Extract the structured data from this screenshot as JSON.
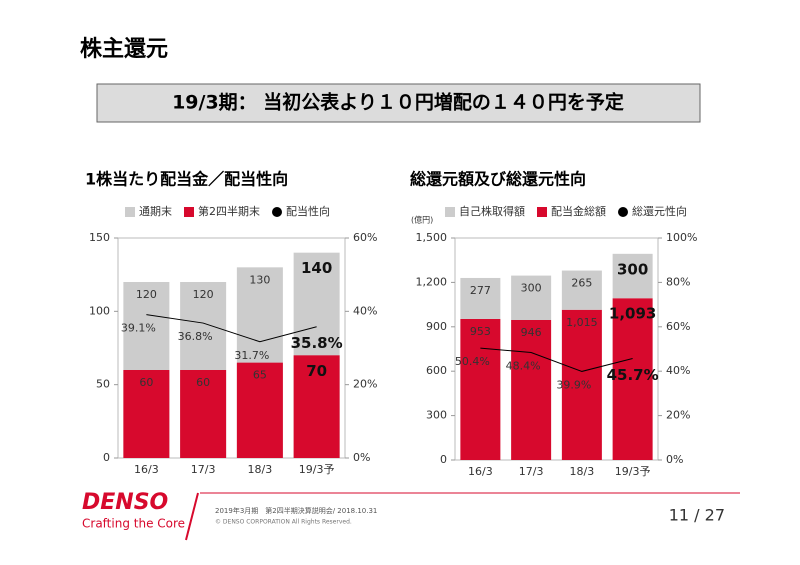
{
  "title": "株主還元",
  "headline": "19/3期： 当初公表より１０円増配の１４０円を予定",
  "chart_data": [
    {
      "type": "bar",
      "barmode": "overlay",
      "title": "1株当たり配当金／配当性向",
      "categories": [
        "16/3",
        "17/3",
        "18/3",
        "19/3予"
      ],
      "series": [
        {
          "name": "通期末",
          "color": "#cccccc",
          "values": [
            120,
            120,
            130,
            140
          ]
        },
        {
          "name": "第2四半期末",
          "color": "#d7092d",
          "values": [
            60,
            60,
            65,
            70
          ]
        },
        {
          "name": "配当性向",
          "type": "line",
          "color": "#000000",
          "axis": "y2",
          "values": [
            39.1,
            36.8,
            31.7,
            35.8
          ],
          "value_labels": [
            "39.1%",
            "36.8%",
            "31.7%",
            "35.8%"
          ]
        }
      ],
      "ylim": [
        0,
        150
      ],
      "yticks": [
        0,
        50,
        100,
        150
      ],
      "y2lim": [
        0,
        60
      ],
      "y2ticks": [
        {
          "value": 0,
          "label": "0%"
        },
        {
          "value": 20,
          "label": "20%"
        },
        {
          "value": 40,
          "label": "40%"
        },
        {
          "value": 60,
          "label": "60%"
        }
      ]
    },
    {
      "type": "bar",
      "barmode": "stack",
      "title": "総還元額及び総還元性向",
      "unit": "(億円)",
      "categories": [
        "16/3",
        "17/3",
        "18/3",
        "19/3予"
      ],
      "series": [
        {
          "name": "自己株取得額",
          "color": "#cccccc",
          "values": [
            277,
            300,
            265,
            300
          ]
        },
        {
          "name": "配当金総額",
          "color": "#d7092d",
          "values": [
            953,
            946,
            1015,
            1093
          ],
          "value_labels": [
            "953",
            "946",
            "1,015",
            "1,093"
          ]
        },
        {
          "name": "総還元性向",
          "type": "line",
          "color": "#000000",
          "axis": "y2",
          "values": [
            50.4,
            48.4,
            39.9,
            45.7
          ],
          "value_labels": [
            "50.4%",
            "48.4%",
            "39.9%",
            "45.7%"
          ]
        }
      ],
      "ylim": [
        0,
        1500
      ],
      "yticks": [
        0,
        300,
        600,
        900,
        {
          "value": 1200,
          "label": "1,200"
        },
        {
          "value": 1500,
          "label": "1,500"
        }
      ],
      "y2lim": [
        0,
        100
      ],
      "y2ticks": [
        {
          "value": 0,
          "label": "0%"
        },
        {
          "value": 20,
          "label": "20%"
        },
        {
          "value": 40,
          "label": "40%"
        },
        {
          "value": 60,
          "label": "60%"
        },
        {
          "value": 80,
          "label": "80%"
        },
        {
          "value": 100,
          "label": "100%"
        }
      ]
    }
  ],
  "footer": {
    "logo": "DENSO",
    "tagline": "Crafting the Core",
    "event": "2019年3月期　第2四半期決算説明会/ 2018.10.31",
    "copyright": "© DENSO CORPORATION All Rights Reserved.",
    "page": "11 / 27"
  }
}
